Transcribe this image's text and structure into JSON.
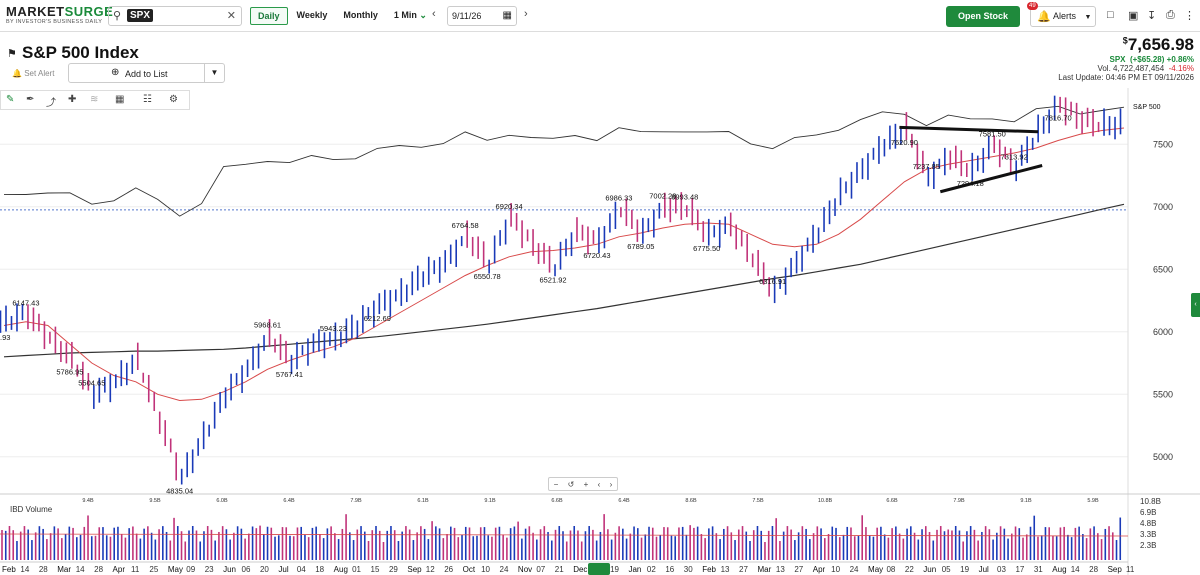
{
  "topbar": {
    "logo_prefix": "MARKET",
    "logo_suffix": "SURGE",
    "logo_sub": "BY INVESTOR'S BUSINESS DAILY",
    "symbol": "SPX",
    "periods": [
      "Daily",
      "Weekly",
      "Monthly",
      "1 Min"
    ],
    "active_period": "Daily",
    "date": "9/11/26",
    "open_ideas": "Open Stock Ideas",
    "alerts": "Alerts",
    "alerts_badge": "49"
  },
  "header": {
    "title": "S&P 500 Index",
    "set_alert": "Set Alert",
    "add_to_list": "Add to List",
    "price_symbol": "$",
    "price": "7,656.98",
    "change_line_symbol": "SPX",
    "change": "(+$65.28) +0.86%",
    "volume_label": "Vol. 4,722,487,454",
    "volume_change": "-4.16%",
    "last_update": "Last Update: 04:46 PM ET 09/11/2026"
  },
  "chart_data": {
    "type": "line",
    "title": "S&P 500 Index",
    "series_label": "S&P 500",
    "y_ticks": [
      5000,
      5500,
      6000,
      6500,
      7000,
      7500
    ],
    "ylim": [
      4750,
      7950
    ],
    "x_ticks": [
      "Feb",
      "14",
      "28",
      "Mar",
      "14",
      "28",
      "Apr",
      "11",
      "25",
      "May",
      "09",
      "23",
      "Jun",
      "06",
      "20",
      "Jul",
      "04",
      "18",
      "Aug",
      "01",
      "15",
      "29",
      "Sep",
      "12",
      "26",
      "Oct",
      "10",
      "24",
      "Nov",
      "07",
      "21",
      "Dec",
      "05",
      "19",
      "Jan",
      "02",
      "16",
      "30",
      "Feb",
      "13",
      "27",
      "Mar",
      "13",
      "27",
      "Apr",
      "10",
      "24",
      "May",
      "08",
      "22",
      "Jun",
      "05",
      "19",
      "Jul",
      "03",
      "17",
      "31",
      "Aug",
      "14",
      "28",
      "Sep",
      "11"
    ],
    "price_annotations": [
      "6147.43",
      "5786.95",
      "5504.65",
      "4835.04",
      "5968.61",
      "5767.41",
      "5943.23",
      "6212.69",
      "6764.58",
      "6550.78",
      "6920.34",
      "6521.92",
      "6986.33",
      "6720.43",
      "7002.28",
      "6789.05",
      "6993.48",
      "6775.50",
      "6316.91",
      "7620.90",
      "7237.85",
      "7294.18",
      "7313.92",
      "7816.70",
      "7581.50"
    ],
    "left_edge_label": ".93",
    "close_path": [
      6080,
      6147,
      5950,
      5787,
      5505,
      5600,
      5780,
      5300,
      4835,
      5150,
      5500,
      5700,
      5969,
      5767,
      5900,
      5943,
      6050,
      6213,
      6300,
      6450,
      6550,
      6765,
      6551,
      6920,
      6700,
      6522,
      6800,
      6720,
      6986,
      6789,
      7002,
      6994,
      6776,
      6850,
      6600,
      6317,
      6550,
      6800,
      7100,
      7300,
      7500,
      7621,
      7238,
      7400,
      7294,
      7500,
      7314,
      7600,
      7817,
      7700,
      7650,
      7657
    ],
    "ma_short": [
      6050,
      6080,
      6050,
      5900,
      5750,
      5650,
      5600,
      5500,
      5450,
      5460,
      5520,
      5600,
      5700,
      5770,
      5830,
      5880,
      5950,
      6050,
      6150,
      6250,
      6350,
      6450,
      6530,
      6600,
      6640,
      6650,
      6670,
      6700,
      6760,
      6790,
      6830,
      6860,
      6870,
      6860,
      6780,
      6700,
      6680,
      6700,
      6780,
      6900,
      7050,
      7200,
      7300,
      7340,
      7370,
      7400,
      7430,
      7470,
      7530,
      7580,
      7610,
      7630
    ],
    "ma_long": [
      5800,
      5810,
      5820,
      5830,
      5835,
      5840,
      5845,
      5845,
      5850,
      5855,
      5860,
      5870,
      5885,
      5900,
      5915,
      5930,
      5945,
      5960,
      5980,
      6000,
      6020,
      6040,
      6060,
      6085,
      6110,
      6135,
      6160,
      6185,
      6215,
      6245,
      6275,
      6305,
      6335,
      6365,
      6395,
      6425,
      6450,
      6480,
      6510,
      6540,
      6580,
      6620,
      6660,
      6700,
      6740,
      6780,
      6820,
      6860,
      6900,
      6940,
      6980,
      7020
    ],
    "rs_line_note": "relative strength line above price",
    "horizontal_line_value": 6975,
    "volume_label": "IBD Volume",
    "volume_ticks": [
      "10.8B",
      "6.9B",
      "4.8B",
      "3.3B",
      "2.3B"
    ],
    "volume_peaks": [
      "9.4B",
      "9.5B",
      "6.0B",
      "6.4B",
      "7.9B",
      "6.1B",
      "9.1B",
      "6.6B",
      "6.4B",
      "8.6B",
      "7.5B",
      "10.8B",
      "6.6B",
      "7.9B",
      "9.1B",
      "5.9B"
    ]
  },
  "colors": {
    "up": "#1a3ab8",
    "down": "#c0337a",
    "ma_short": "#d84a4a",
    "ma_long": "#333333",
    "accent": "#1f8a3c"
  }
}
